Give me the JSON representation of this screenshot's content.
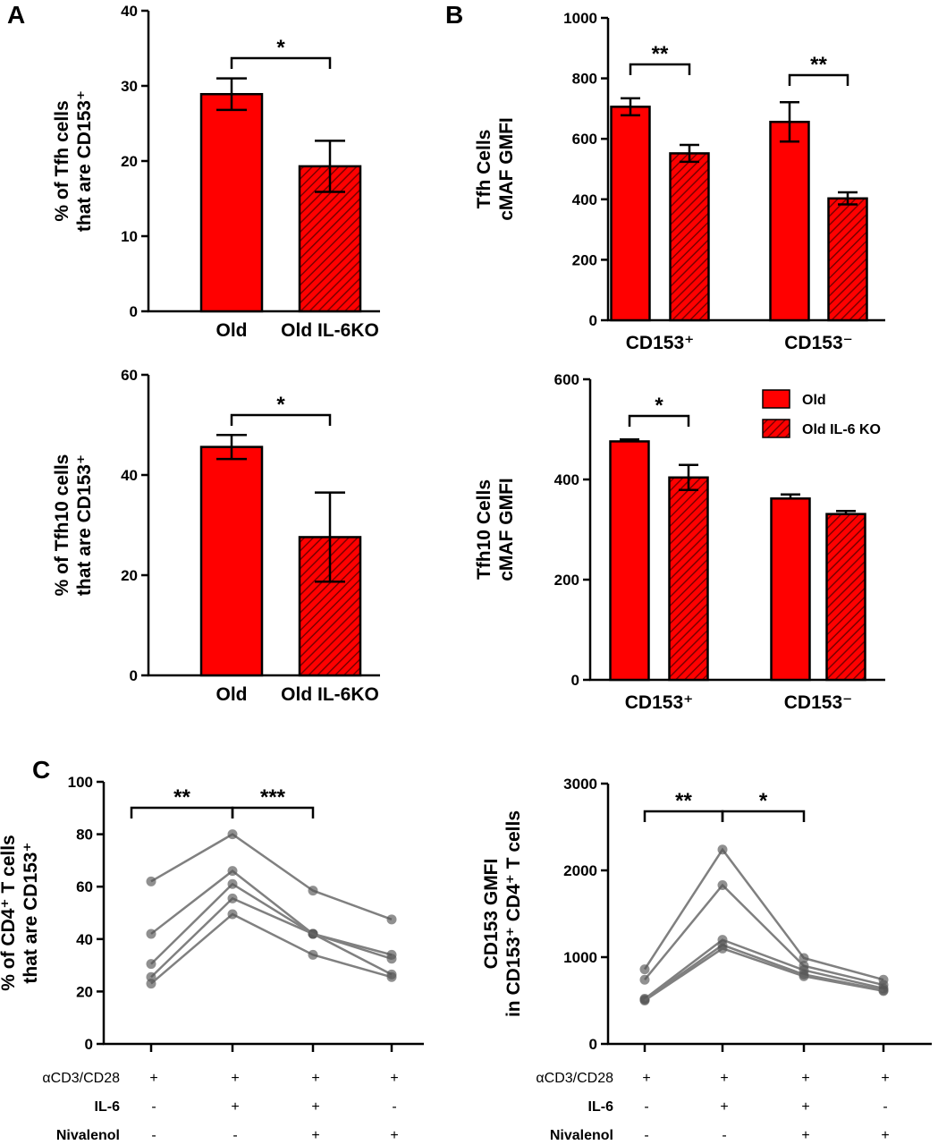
{
  "figure": {
    "panel_labels": [
      "A",
      "B",
      "C"
    ]
  },
  "colors": {
    "red": "#ff0000",
    "hatch": "#7a0000",
    "line_gray": "#808080",
    "axis": "#000000"
  },
  "chart_data": [
    {
      "id": "A1",
      "type": "bar",
      "panel": "A",
      "ylabel": "% of Tfh cells\nthat are CD153⁺",
      "ylim": [
        0,
        40
      ],
      "yticks": [
        0,
        10,
        20,
        30,
        40
      ],
      "categories": [
        "Old",
        "Old IL-6KO"
      ],
      "values": [
        28.9,
        19.3
      ],
      "errors": [
        2.1,
        3.4
      ],
      "hatched": [
        false,
        true
      ],
      "significance": [
        {
          "from": 0,
          "to": 1,
          "label": "*"
        }
      ]
    },
    {
      "id": "B1",
      "type": "bar",
      "panel": "B",
      "ylabel": "Tfh Cells\ncMAF GMFI",
      "ylim": [
        0,
        1000
      ],
      "yticks": [
        0,
        200,
        400,
        600,
        800,
        1000
      ],
      "categories": [
        "CD153⁺",
        "CD153⁻"
      ],
      "series": [
        {
          "name": "Old",
          "values": [
            706,
            656
          ],
          "errors": [
            28,
            65
          ],
          "hatched": false
        },
        {
          "name": "Old IL-6 KO",
          "values": [
            552,
            403
          ],
          "errors": [
            28,
            20
          ],
          "hatched": true
        }
      ],
      "significance": [
        {
          "group": 0,
          "label": "**"
        },
        {
          "group": 1,
          "label": "**"
        }
      ]
    },
    {
      "id": "A2",
      "type": "bar",
      "panel": "A",
      "ylabel": "% of Tfh10 cells\nthat are CD153⁺",
      "ylim": [
        0,
        60
      ],
      "yticks": [
        0,
        20,
        40,
        60
      ],
      "categories": [
        "Old",
        "Old IL-6KO"
      ],
      "values": [
        45.6,
        27.6
      ],
      "errors": [
        2.4,
        8.9
      ],
      "hatched": [
        false,
        true
      ],
      "significance": [
        {
          "from": 0,
          "to": 1,
          "label": "*"
        }
      ]
    },
    {
      "id": "B2",
      "type": "bar",
      "panel": "B",
      "ylabel": "Tfh10 Cells\ncMAF GMFI",
      "ylim": [
        0,
        600
      ],
      "yticks": [
        0,
        200,
        400,
        600
      ],
      "categories": [
        "CD153⁺",
        "CD153⁻"
      ],
      "series": [
        {
          "name": "Old",
          "values": [
            476,
            362
          ],
          "errors": [
            4,
            8
          ],
          "hatched": false
        },
        {
          "name": "Old IL-6 KO",
          "values": [
            404,
            331
          ],
          "errors": [
            25,
            6
          ],
          "hatched": true
        }
      ],
      "legend": {
        "placement": "top-right",
        "entries": [
          "Old",
          "Old IL-6 KO"
        ]
      },
      "significance": [
        {
          "group": 0,
          "label": "*"
        }
      ]
    },
    {
      "id": "C1",
      "type": "line",
      "panel": "C",
      "ylabel": "% of CD4⁺ T cells\nthat are CD153⁺",
      "ylim": [
        0,
        100
      ],
      "yticks": [
        0,
        20,
        40,
        60,
        80,
        100
      ],
      "conditions": {
        "rows": [
          "αCD3/CD28",
          "IL-6",
          "Nivalenol"
        ],
        "values": [
          [
            "+",
            "+",
            "+",
            "+"
          ],
          [
            "-",
            "+",
            "+",
            "-"
          ],
          [
            "-",
            "-",
            "+",
            "+"
          ]
        ]
      },
      "series": [
        {
          "values": [
            62,
            80,
            58.5,
            47.5
          ]
        },
        {
          "values": [
            42,
            66,
            42,
            34
          ]
        },
        {
          "values": [
            30.5,
            61,
            42,
            32.5
          ]
        },
        {
          "values": [
            25.5,
            55.5,
            42,
            26.5
          ]
        },
        {
          "values": [
            23,
            49.5,
            34,
            25.5
          ]
        }
      ],
      "significance": [
        {
          "from": 0,
          "to": 1,
          "label": "**"
        },
        {
          "from": 1,
          "to": 2,
          "label": "***"
        }
      ]
    },
    {
      "id": "C2",
      "type": "line",
      "panel": "C",
      "ylabel": "CD153 GMFI\nin CD153⁺ CD4⁺ T cells",
      "ylim": [
        0,
        3000
      ],
      "yticks": [
        0,
        1000,
        2000,
        3000
      ],
      "conditions": {
        "rows": [
          "αCD3/CD28",
          "IL-6",
          "Nivalenol"
        ],
        "values": [
          [
            "+",
            "+",
            "+",
            "+"
          ],
          [
            "-",
            "+",
            "+",
            "-"
          ],
          [
            "-",
            "-",
            "+",
            "+"
          ]
        ]
      },
      "series": [
        {
          "values": [
            860,
            2240,
            990,
            740
          ]
        },
        {
          "values": [
            740,
            1830,
            900,
            680
          ]
        },
        {
          "values": [
            520,
            1200,
            850,
            640
          ]
        },
        {
          "values": [
            510,
            1140,
            800,
            620
          ]
        },
        {
          "values": [
            500,
            1100,
            780,
            610
          ]
        }
      ],
      "significance": [
        {
          "from": 0,
          "to": 1,
          "label": "**"
        },
        {
          "from": 1,
          "to": 2,
          "label": "*"
        }
      ]
    }
  ]
}
